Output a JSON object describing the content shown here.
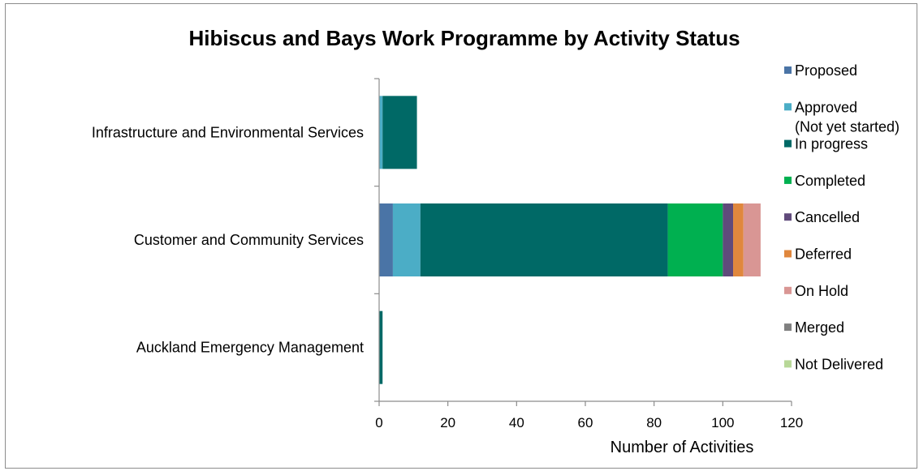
{
  "chart_data": {
    "type": "bar",
    "orientation": "horizontal",
    "stacked": true,
    "title": "Hibiscus and Bays Work Programme by Activity Status",
    "xlabel": "Number of Activities",
    "ylabel": "",
    "xlim": [
      0,
      120
    ],
    "xticks": [
      "0",
      "20",
      "40",
      "60",
      "80",
      "100",
      "120"
    ],
    "grid": false,
    "legend_position": "right",
    "categories": [
      "Infrastructure and Environmental Services",
      "Customer and Community Services",
      "Auckland Emergency Management"
    ],
    "series": [
      {
        "name": "Proposed",
        "color": "#4a74a6",
        "values": [
          0,
          4,
          0
        ]
      },
      {
        "name": "Approved (Not yet started)",
        "label_lines": [
          "Approved",
          "(Not yet started)"
        ],
        "color": "#4badc6",
        "values": [
          1,
          8,
          0
        ]
      },
      {
        "name": "In progress",
        "color": "#006966",
        "values": [
          10,
          72,
          1
        ]
      },
      {
        "name": "Completed",
        "color": "#00b050",
        "values": [
          0,
          16,
          0
        ]
      },
      {
        "name": "Cancelled",
        "color": "#604a7b",
        "values": [
          0,
          3,
          0
        ]
      },
      {
        "name": "Deferred",
        "color": "#e0873d",
        "values": [
          0,
          3,
          0
        ]
      },
      {
        "name": "On Hold",
        "color": "#d99694",
        "values": [
          0,
          5,
          0
        ]
      },
      {
        "name": "Merged",
        "color": "#808080",
        "values": [
          0,
          0,
          0
        ]
      },
      {
        "name": "Not Delivered",
        "color": "#b8d898",
        "values": [
          0,
          0,
          0
        ]
      }
    ]
  }
}
